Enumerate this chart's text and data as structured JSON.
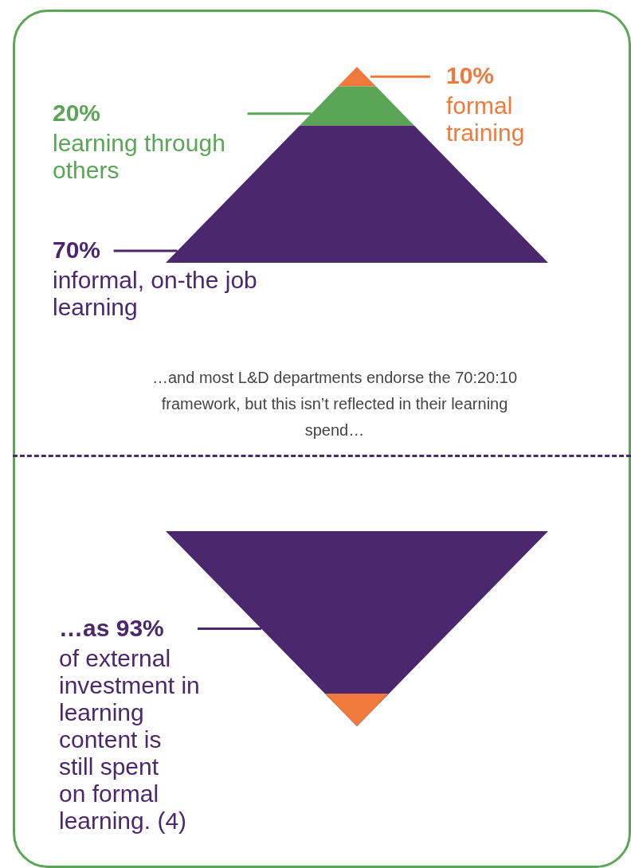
{
  "chart_data": [
    {
      "type": "other",
      "categories": [
        "formal training",
        "learning through others",
        "informal, on-the job learning"
      ],
      "values": [
        10,
        20,
        70
      ],
      "colors": [
        "#f07a3c",
        "#5aa556",
        "#4b286d"
      ],
      "value_labels": [
        "10%",
        "20%",
        "70%"
      ],
      "annotations": [
        "…and most L&D departments endorse the 70:20:10 framework, but this isn’t reflected in their learning spend…"
      ]
    },
    {
      "type": "other",
      "categories": [
        "of external investment in learning content is still spent on formal learning. (4)"
      ],
      "values": [
        93
      ],
      "colors": [
        "#4b286d"
      ],
      "value_labels": [
        "…as 93%"
      ]
    }
  ]
}
